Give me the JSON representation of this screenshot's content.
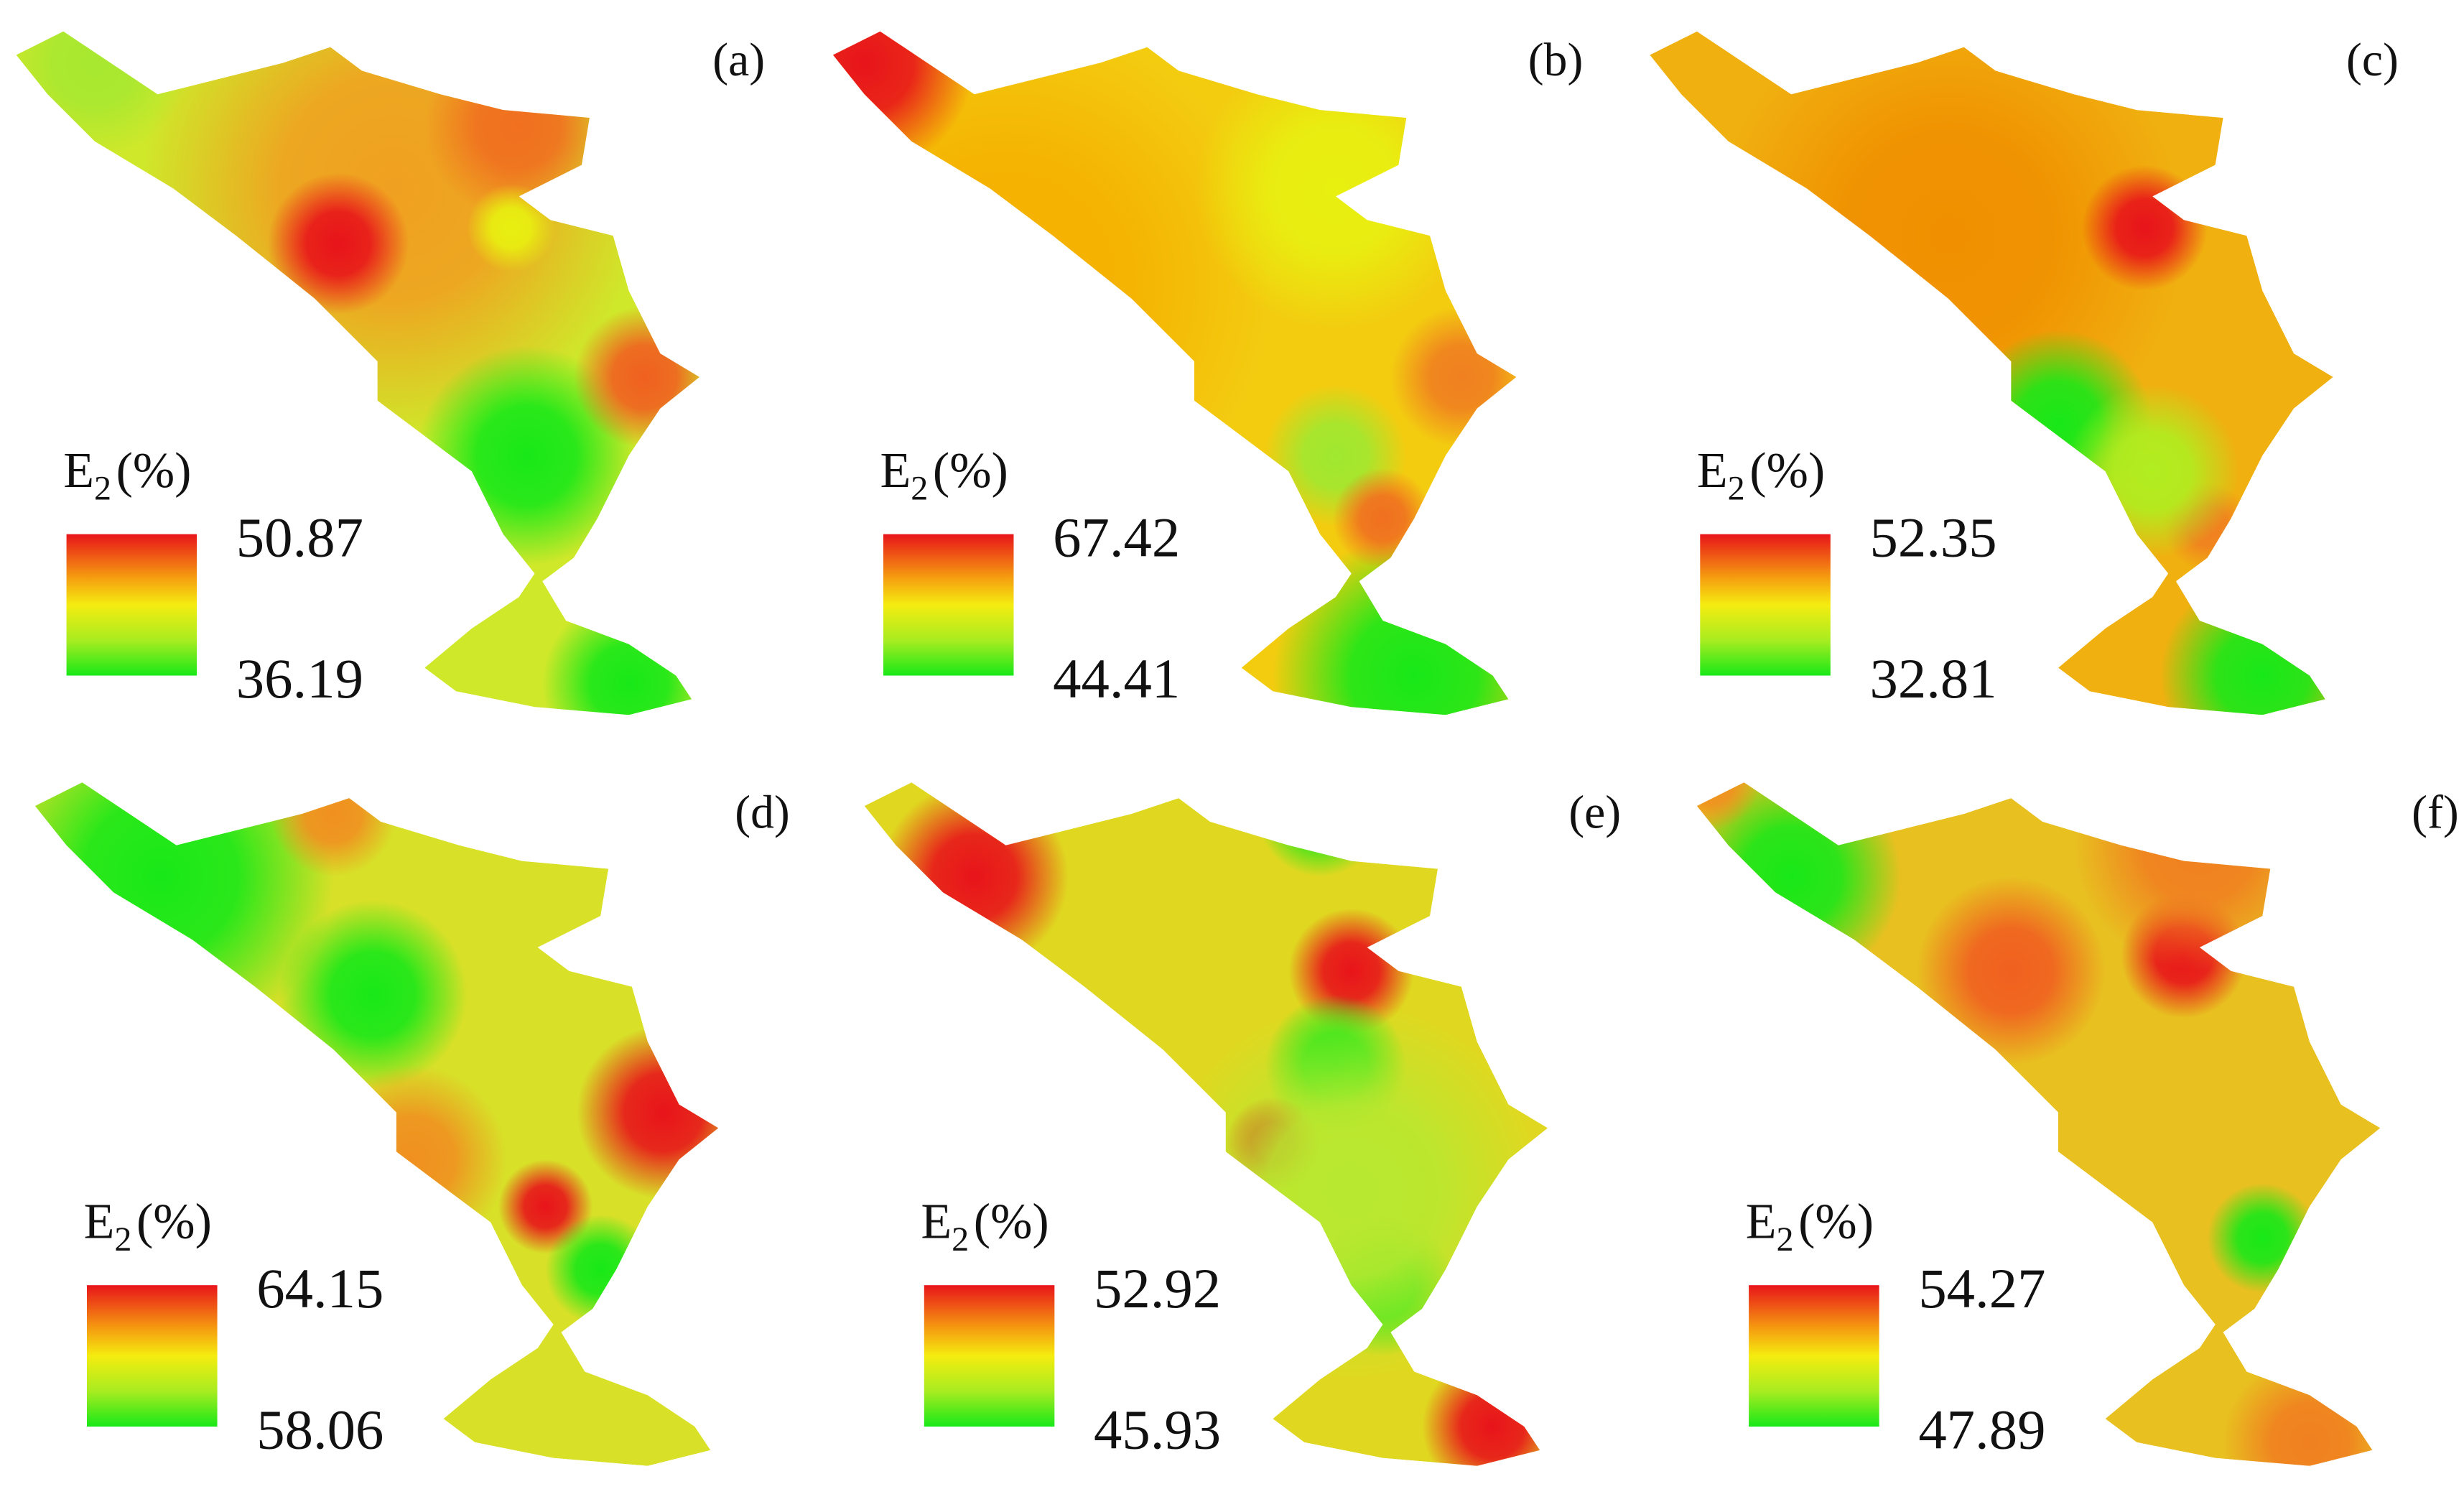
{
  "panels": [
    {
      "label": "(a)",
      "legend": {
        "title": "E",
        "subscript": "2",
        "unit": "(%)",
        "max": 50.87,
        "min": 36.19
      }
    },
    {
      "label": "(b)",
      "legend": {
        "title": "E",
        "subscript": "2",
        "unit": "(%)",
        "max": 67.42,
        "min": 44.41
      }
    },
    {
      "label": "(c)",
      "legend": {
        "title": "E",
        "subscript": "2",
        "unit": "(%)",
        "max": 52.35,
        "min": 32.81
      }
    },
    {
      "label": "(d)",
      "legend": {
        "title": "E",
        "subscript": "2",
        "unit": "(%)",
        "max": 64.15,
        "min": 58.06
      }
    },
    {
      "label": "(e)",
      "legend": {
        "title": "E",
        "subscript": "2",
        "unit": "(%)",
        "max": 52.92,
        "min": 45.93
      }
    },
    {
      "label": "(f)",
      "legend": {
        "title": "E",
        "subscript": "2",
        "unit": "(%)",
        "max": 54.27,
        "min": 47.89
      }
    }
  ]
}
